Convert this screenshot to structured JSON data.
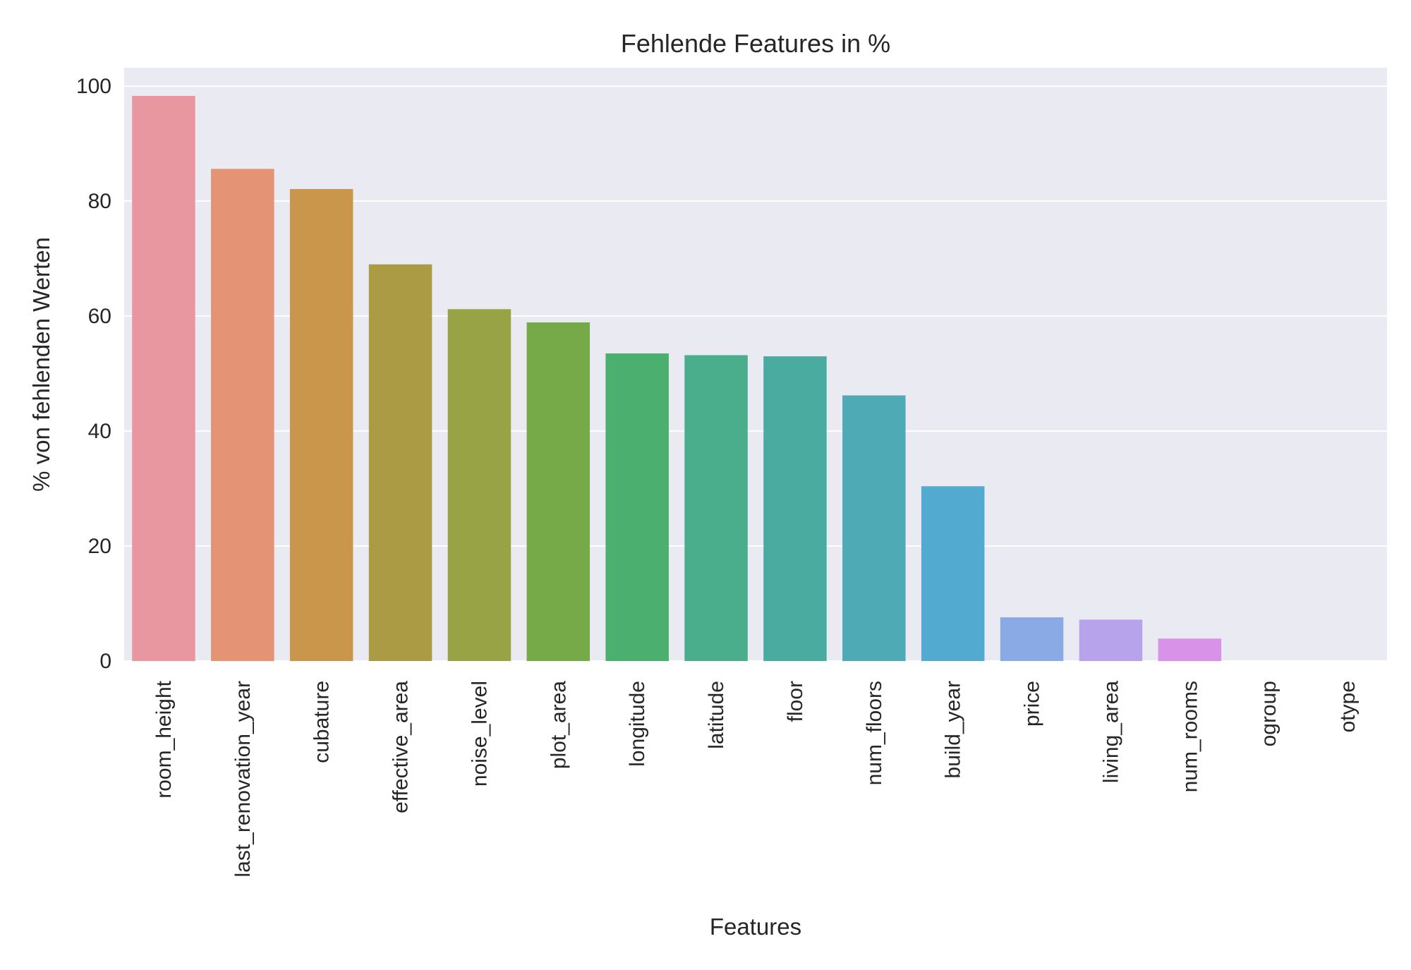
{
  "chart_data": {
    "type": "bar",
    "title": "Fehlende Features in %",
    "xlabel": "Features",
    "ylabel": "% von fehlenden Werten",
    "categories": [
      "room_height",
      "last_renovation_year",
      "cubature",
      "effective_area",
      "noise_level",
      "plot_area",
      "longitude",
      "latitude",
      "floor",
      "num_floors",
      "build_year",
      "price",
      "living_area",
      "num_rooms",
      "ogroup",
      "otype"
    ],
    "values": [
      98.3,
      85.6,
      82.1,
      69.0,
      61.2,
      58.9,
      53.5,
      53.2,
      53.0,
      46.2,
      30.4,
      7.6,
      7.2,
      3.9,
      0,
      0
    ],
    "colors": [
      "#e8969f",
      "#e49374",
      "#c9964b",
      "#ac9b45",
      "#98a346",
      "#76a947",
      "#4aaf6f",
      "#4aae8d",
      "#4aaba1",
      "#4eaab5",
      "#53aad1",
      "#8aaae5",
      "#b7a3eb",
      "#d893e8",
      "#e58bc8",
      "#e98fb0"
    ],
    "ylim": [
      0,
      103.2
    ],
    "yticks": [
      0,
      20,
      40,
      60,
      80,
      100
    ],
    "grid": true,
    "background": "#eaeaf2",
    "grid_color": "#ffffff",
    "text_color": "#262626"
  }
}
